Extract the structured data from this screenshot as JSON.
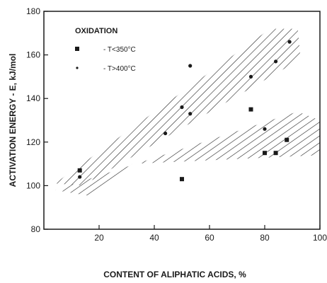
{
  "chart_data": {
    "type": "scatter",
    "title": "",
    "xlabel": "CONTENT OF ALIPHATIC ACIDS, %",
    "ylabel": "ACTIVATION ENERGY - E, kJ/mol",
    "xlim": [
      0,
      100
    ],
    "ylim": [
      80,
      180
    ],
    "x_ticks": [
      20,
      40,
      60,
      80,
      100
    ],
    "y_ticks": [
      80,
      100,
      120,
      140,
      160,
      180
    ],
    "grid": false,
    "legend": {
      "title": "OXIDATION",
      "placement": "top-left",
      "entries": [
        {
          "marker": "square",
          "label": "- T<350°C"
        },
        {
          "marker": "dot",
          "label": "- T>400°C"
        }
      ]
    },
    "series": [
      {
        "marker": "square",
        "points": [
          {
            "x": 13,
            "y": 107
          },
          {
            "x": 50,
            "y": 103
          },
          {
            "x": 75,
            "y": 135
          },
          {
            "x": 80,
            "y": 115
          },
          {
            "x": 84,
            "y": 115
          },
          {
            "x": 88,
            "y": 121
          }
        ]
      },
      {
        "marker": "dot",
        "points": [
          {
            "x": 13,
            "y": 104
          },
          {
            "x": 44,
            "y": 124
          },
          {
            "x": 50,
            "y": 136
          },
          {
            "x": 53,
            "y": 133
          },
          {
            "x": 53,
            "y": 155
          },
          {
            "x": 75,
            "y": 150
          },
          {
            "x": 80,
            "y": 126
          },
          {
            "x": 84,
            "y": 157
          },
          {
            "x": 89,
            "y": 166
          }
        ]
      }
    ],
    "bands": [
      {
        "name": "upper",
        "polygon": [
          [
            4,
            101
          ],
          [
            14,
            100
          ],
          [
            93,
            158
          ],
          [
            92,
            172
          ],
          [
            82,
            172
          ]
        ]
      },
      {
        "name": "lower",
        "polygon": [
          [
            4,
            98
          ],
          [
            18,
            95
          ],
          [
            32,
            110
          ],
          [
            100,
            114
          ],
          [
            100,
            130
          ],
          [
            92,
            134
          ]
        ]
      }
    ]
  }
}
